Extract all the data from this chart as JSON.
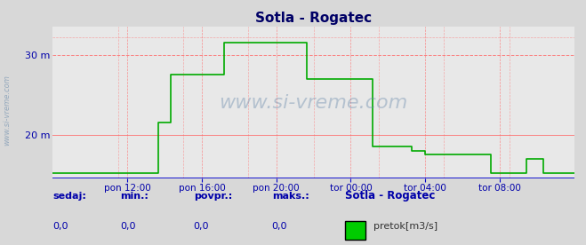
{
  "title": "Sotla - Rogatec",
  "bg_color": "#d8d8d8",
  "plot_bg_color": "#e8e8e8",
  "line_color": "#00aa00",
  "axis_color": "#0000cc",
  "grid_color_h": "#ff6666",
  "grid_color_v": "#ff6666",
  "ylabel_color": "#0000aa",
  "title_color": "#000066",
  "ylim": [
    14.5,
    33.5
  ],
  "yticks": [
    20,
    30
  ],
  "ytick_labels": [
    "20 m",
    "30 m"
  ],
  "xtick_labels": [
    "pon 12:00",
    "pon 16:00",
    "pon 20:00",
    "tor 00:00",
    "tor 04:00",
    "tor 08:00"
  ],
  "watermark": "www.si-vreme.com",
  "footer_labels": [
    "sedaj:",
    "min.:",
    "povpr.:",
    "maks.:",
    "Sotla - Rogatec"
  ],
  "footer_values": [
    "0,0",
    "0,0",
    "0,0",
    "0,0"
  ],
  "legend_label": "pretok[m3/s]",
  "legend_color": "#00cc00",
  "x_data": [
    0,
    1,
    2,
    3,
    4,
    5,
    6,
    7,
    8,
    9,
    10,
    11,
    12,
    13,
    14,
    15,
    16,
    17,
    18,
    19,
    20,
    21,
    22,
    23,
    24,
    25,
    26,
    27,
    28,
    29,
    30,
    31,
    32,
    33,
    34,
    35,
    36,
    37,
    38,
    39,
    40,
    41,
    42,
    43,
    44,
    45,
    46,
    47,
    48,
    49,
    50,
    51,
    52,
    53,
    54,
    55,
    56,
    57,
    58,
    59,
    60,
    61,
    62,
    63,
    64,
    65,
    66,
    67,
    68,
    69,
    70,
    71,
    72,
    73,
    74,
    75,
    76,
    77,
    78,
    79,
    80,
    81,
    82,
    83,
    84,
    85,
    86,
    87,
    88,
    89,
    90,
    91,
    92,
    93,
    94,
    95,
    96,
    97,
    98,
    99,
    100,
    101,
    102,
    103,
    104,
    105,
    106,
    107,
    108,
    109,
    110,
    111,
    112,
    113,
    114,
    115,
    116,
    117,
    118,
    119
  ],
  "y_data": [
    15.2,
    15.2,
    15.2,
    15.2,
    15.2,
    15.2,
    15.2,
    15.2,
    15.2,
    15.2,
    15.2,
    15.2,
    15.2,
    15.2,
    15.2,
    15.2,
    15.2,
    15.2,
    15.2,
    15.2,
    15.2,
    15.2,
    15.2,
    15.2,
    21.5,
    21.5,
    21.5,
    27.5,
    27.5,
    27.5,
    27.5,
    27.5,
    27.5,
    27.5,
    27.5,
    27.5,
    27.5,
    27.5,
    27.5,
    31.5,
    31.5,
    31.5,
    31.5,
    31.5,
    31.5,
    31.5,
    31.5,
    31.5,
    31.5,
    31.5,
    31.5,
    31.5,
    31.5,
    31.5,
    31.5,
    31.5,
    31.5,
    31.5,
    27.0,
    27.0,
    27.0,
    27.0,
    27.0,
    27.0,
    27.0,
    27.0,
    27.0,
    27.0,
    27.0,
    27.0,
    27.0,
    27.0,
    27.0,
    18.5,
    18.5,
    18.5,
    18.5,
    18.5,
    18.5,
    18.5,
    18.5,
    18.5,
    18.0,
    18.0,
    18.0,
    17.5,
    17.5,
    17.5,
    17.5,
    17.5,
    17.5,
    17.5,
    17.5,
    17.5,
    17.5,
    17.5,
    17.5,
    17.5,
    17.5,
    17.5,
    15.2,
    15.2,
    15.2,
    15.2,
    15.2,
    15.2,
    15.2,
    15.2,
    17.0,
    17.0,
    17.0,
    17.0,
    15.2,
    15.2,
    15.2,
    15.2,
    15.2,
    15.2,
    15.2,
    15.2
  ]
}
